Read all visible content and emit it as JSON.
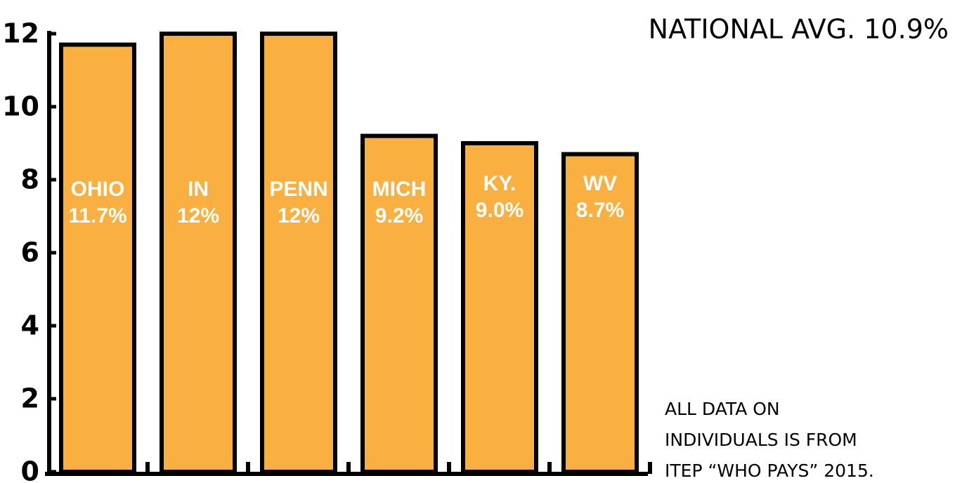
{
  "chart_data": {
    "type": "bar",
    "categories": [
      "OHIO",
      "IN",
      "PENN",
      "MICH",
      "KY.",
      "WV"
    ],
    "values": [
      11.7,
      12,
      12,
      9.2,
      9.0,
      8.7
    ],
    "value_labels": [
      "11.7%",
      "12%",
      "12%",
      "9.2%",
      "9.0%",
      "8.7%"
    ],
    "color": "#f9b040",
    "ylim": [
      0,
      12
    ],
    "yticks": [
      0,
      2,
      4,
      6,
      8,
      10,
      12
    ],
    "annotations": [
      "NATIONAL AVG. 10.9%"
    ],
    "note": [
      "ALL DATA ON",
      "INDIVIDUALS IS FROM",
      "ITEP “WHO PAYS” 2015."
    ]
  }
}
